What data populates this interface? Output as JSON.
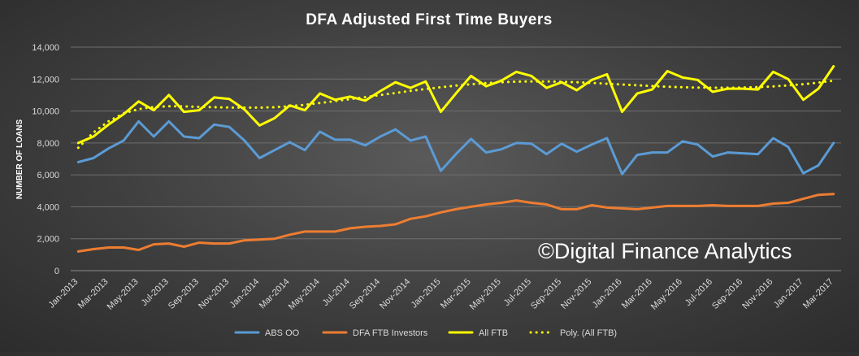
{
  "chart_data": {
    "type": "line",
    "title": "DFA Adjusted First Time Buyers",
    "ylabel": "NUMBER OF LOANS",
    "xlabel": "",
    "ylim": [
      0,
      14000
    ],
    "yticks": [
      "0",
      "2,000",
      "4,000",
      "6,000",
      "8,000",
      "10,000",
      "12,000",
      "14,000"
    ],
    "grid": "horizontal",
    "legend": "bottom",
    "categories": [
      "Jan-2013",
      "Feb-2013",
      "Mar-2013",
      "Apr-2013",
      "May-2013",
      "Jun-2013",
      "Jul-2013",
      "Aug-2013",
      "Sep-2013",
      "Oct-2013",
      "Nov-2013",
      "Dec-2013",
      "Jan-2014",
      "Feb-2014",
      "Mar-2014",
      "Apr-2014",
      "May-2014",
      "Jun-2014",
      "Jul-2014",
      "Aug-2014",
      "Sep-2014",
      "Oct-2014",
      "Nov-2014",
      "Dec-2014",
      "Jan-2015",
      "Feb-2015",
      "Mar-2015",
      "Apr-2015",
      "May-2015",
      "Jun-2015",
      "Jul-2015",
      "Aug-2015",
      "Sep-2015",
      "Oct-2015",
      "Nov-2015",
      "Dec-2015",
      "Jan-2016",
      "Feb-2016",
      "Mar-2016",
      "Apr-2016",
      "May-2016",
      "Jun-2016",
      "Jul-2016",
      "Aug-2016",
      "Sep-2016",
      "Oct-2016",
      "Nov-2016",
      "Dec-2016",
      "Jan-2017",
      "Feb-2017",
      "Mar-2017"
    ],
    "tick_labels": [
      "Jan-2013",
      "Mar-2013",
      "May-2013",
      "Jul-2013",
      "Sep-2013",
      "Nov-2013",
      "Jan-2014",
      "Mar-2014",
      "May-2014",
      "Jul-2014",
      "Sep-2014",
      "Nov-2014",
      "Jan-2015",
      "Mar-2015",
      "May-2015",
      "Jul-2015",
      "Sep-2015",
      "Nov-2015",
      "Jan-2016",
      "Mar-2016",
      "May-2016",
      "Jul-2016",
      "Sep-2016",
      "Nov-2016",
      "Jan-2017",
      "Mar-2017"
    ],
    "series": [
      {
        "name": "ABS OO",
        "color": "#5b9bd5",
        "style": "solid",
        "values": [
          6800,
          7050,
          7650,
          8150,
          9350,
          8400,
          9350,
          8400,
          8300,
          9150,
          9000,
          8150,
          7050,
          7550,
          8050,
          7550,
          8700,
          8200,
          8200,
          7850,
          8400,
          8850,
          8150,
          8400,
          6250,
          7300,
          8250,
          7400,
          7600,
          8000,
          7950,
          7300,
          7950,
          7450,
          7900,
          8300,
          6050,
          7250,
          7400,
          7400,
          8100,
          7900,
          7150,
          7400,
          7350,
          7300,
          8300,
          7750,
          6100,
          6600,
          8000
        ]
      },
      {
        "name": "DFA FTB Investors",
        "color": "#ed7d31",
        "style": "solid",
        "values": [
          1200,
          1350,
          1450,
          1450,
          1300,
          1650,
          1700,
          1500,
          1750,
          1700,
          1700,
          1900,
          1950,
          2000,
          2250,
          2450,
          2450,
          2450,
          2650,
          2750,
          2800,
          2900,
          3250,
          3400,
          3650,
          3850,
          4000,
          4150,
          4250,
          4400,
          4250,
          4150,
          3850,
          3850,
          4100,
          3950,
          3900,
          3850,
          3950,
          4050,
          4050,
          4050,
          4100,
          4050,
          4050,
          4050,
          4200,
          4250,
          4500,
          4750,
          4800
        ]
      },
      {
        "name": "All FTB",
        "color": "#ffff00",
        "style": "solid",
        "values": [
          8000,
          8400,
          9150,
          9800,
          10600,
          10050,
          11000,
          9950,
          10050,
          10850,
          10750,
          10100,
          9100,
          9550,
          10350,
          10050,
          11100,
          10700,
          10900,
          10650,
          11250,
          11800,
          11450,
          11850,
          9950,
          11100,
          12200,
          11550,
          11900,
          12450,
          12200,
          11450,
          11800,
          11300,
          11950,
          12300,
          9950,
          11100,
          11350,
          12500,
          12100,
          11950,
          11200,
          11400,
          11400,
          11350,
          12450,
          12000,
          10700,
          11400,
          12800
        ]
      },
      {
        "name": "Poly. (All FTB)",
        "color": "#ffff00",
        "style": "dotted",
        "values": [
          7700,
          8650,
          9350,
          9850,
          10120,
          10250,
          10300,
          10290,
          10260,
          10240,
          10220,
          10210,
          10210,
          10240,
          10300,
          10390,
          10500,
          10620,
          10740,
          10870,
          11000,
          11130,
          11260,
          11380,
          11490,
          11590,
          11680,
          11750,
          11800,
          11840,
          11850,
          11850,
          11830,
          11800,
          11760,
          11710,
          11660,
          11610,
          11560,
          11520,
          11490,
          11470,
          11460,
          11460,
          11470,
          11500,
          11540,
          11600,
          11680,
          11780,
          11900
        ]
      }
    ],
    "watermark": "©Digital Finance Analytics"
  }
}
